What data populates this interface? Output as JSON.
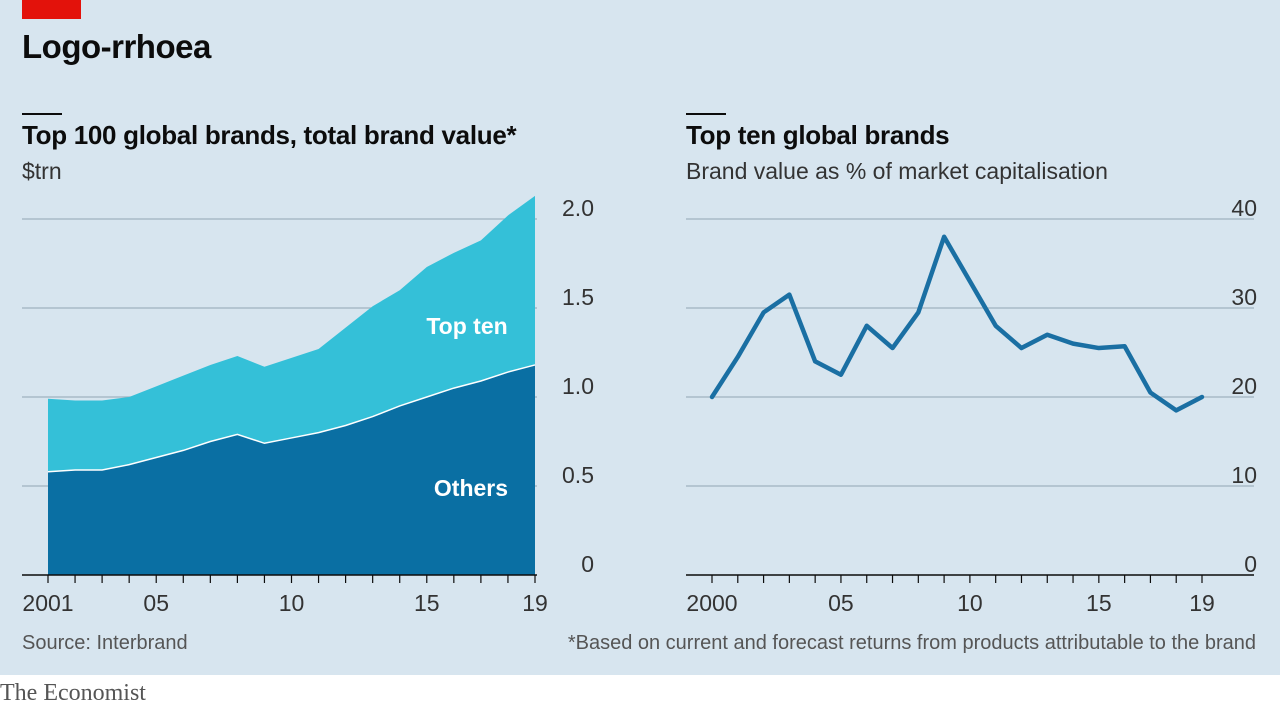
{
  "header": {
    "title": "Logo-rrhoea"
  },
  "chart_data": [
    {
      "type": "area",
      "title": "Top 100 global brands, total brand value*",
      "unit": "$trn",
      "x": [
        2001,
        2002,
        2003,
        2004,
        2005,
        2006,
        2007,
        2008,
        2009,
        2010,
        2011,
        2012,
        2013,
        2014,
        2015,
        2016,
        2017,
        2018,
        2019
      ],
      "series": [
        {
          "name": "Others",
          "values": [
            0.58,
            0.59,
            0.59,
            0.62,
            0.66,
            0.7,
            0.75,
            0.79,
            0.74,
            0.77,
            0.8,
            0.84,
            0.89,
            0.95,
            1.0,
            1.05,
            1.09,
            1.14,
            1.18
          ],
          "color": "#0a6fa3"
        },
        {
          "name": "Top ten",
          "values": [
            0.41,
            0.39,
            0.39,
            0.38,
            0.4,
            0.42,
            0.43,
            0.44,
            0.43,
            0.45,
            0.47,
            0.55,
            0.62,
            0.65,
            0.73,
            0.76,
            0.79,
            0.88,
            0.95
          ],
          "color": "#34c0d8"
        }
      ],
      "stacked": true,
      "ylim": [
        0,
        2.0
      ],
      "yticks": [
        "0",
        "0.5",
        "1.0",
        "1.5",
        "2.0"
      ],
      "xtick_labels": [
        "2001",
        "05",
        "10",
        "15",
        "19"
      ],
      "grid": true
    },
    {
      "type": "line",
      "title": "Top ten global brands",
      "subtitle": "Brand value as % of market capitalisation",
      "x": [
        2000,
        2001,
        2002,
        2003,
        2004,
        2005,
        2006,
        2007,
        2008,
        2009,
        2010,
        2011,
        2012,
        2013,
        2014,
        2015,
        2016,
        2017,
        2018,
        2019
      ],
      "series": [
        {
          "values": [
            20,
            24.5,
            29.5,
            31.5,
            24,
            22.5,
            28,
            25.5,
            29.5,
            38,
            33,
            28,
            25.5,
            27,
            26,
            25.5,
            25.7,
            20.5,
            18.5,
            20
          ],
          "color": "#1a6fa3"
        }
      ],
      "ylim": [
        0,
        40
      ],
      "yticks": [
        "0",
        "10",
        "20",
        "30",
        "40"
      ],
      "xtick_labels": [
        "2000",
        "05",
        "10",
        "15",
        "19"
      ],
      "grid": true
    }
  ],
  "footer": {
    "source": "Source: Interbrand",
    "note": "*Based on current and forecast returns from products attributable to the brand",
    "brand": "The Economist"
  }
}
